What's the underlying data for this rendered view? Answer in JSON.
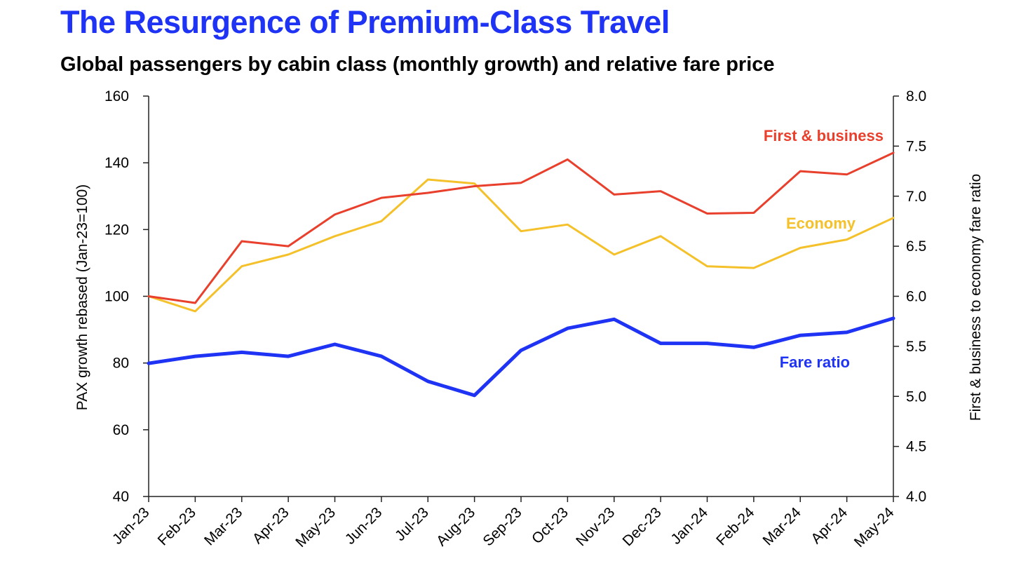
{
  "chart_data": {
    "type": "line",
    "title": "The Resurgence of Premium-Class Travel",
    "subtitle": "Global passengers by cabin class (monthly growth) and relative fare price",
    "categories": [
      "Jan-23",
      "Feb-23",
      "Mar-23",
      "Apr-23",
      "May-23",
      "Jun-23",
      "Jul-23",
      "Aug-23",
      "Sep-23",
      "Oct-23",
      "Nov-23",
      "Dec-23",
      "Jan-24",
      "Feb-24",
      "Mar-24",
      "Apr-24",
      "May-24"
    ],
    "y_left": {
      "label": "PAX growth rebased (Jan-23=100)",
      "range": [
        40,
        160
      ],
      "ticks": [
        40,
        60,
        80,
        100,
        120,
        140,
        160
      ],
      "tick_labels": [
        "40",
        "60",
        "80",
        "100",
        "120",
        "140",
        "160"
      ]
    },
    "y_right": {
      "label": "First & business to economy fare ratio",
      "range": [
        4.0,
        8.0
      ],
      "ticks": [
        4.0,
        4.5,
        5.0,
        5.5,
        6.0,
        6.5,
        7.0,
        7.5,
        8.0
      ],
      "tick_labels": [
        "4.0",
        "4.5",
        "5.0",
        "5.5",
        "6.0",
        "6.5",
        "7.0",
        "7.5",
        "8.0"
      ]
    },
    "series": [
      {
        "name": "First & business",
        "axis": "left",
        "color": "#e8402c",
        "values": [
          100,
          98,
          116.5,
          115,
          124.5,
          129.5,
          131,
          133,
          134,
          141,
          130.5,
          131.5,
          124.8,
          125,
          137.5,
          136.5,
          143
        ]
      },
      {
        "name": "Economy",
        "axis": "left",
        "color": "#f4c12b",
        "values": [
          100,
          95.5,
          109,
          112.5,
          118,
          122.5,
          135,
          133.8,
          119.5,
          121.5,
          112.5,
          118,
          109,
          108.5,
          114.5,
          117,
          123.5
        ]
      },
      {
        "name": "Fare ratio",
        "axis": "right",
        "color": "#1f33f5",
        "values": [
          5.33,
          5.4,
          5.44,
          5.4,
          5.52,
          5.4,
          5.15,
          5.01,
          5.46,
          5.68,
          5.77,
          5.53,
          5.53,
          5.49,
          5.61,
          5.64,
          5.78
        ]
      }
    ]
  }
}
